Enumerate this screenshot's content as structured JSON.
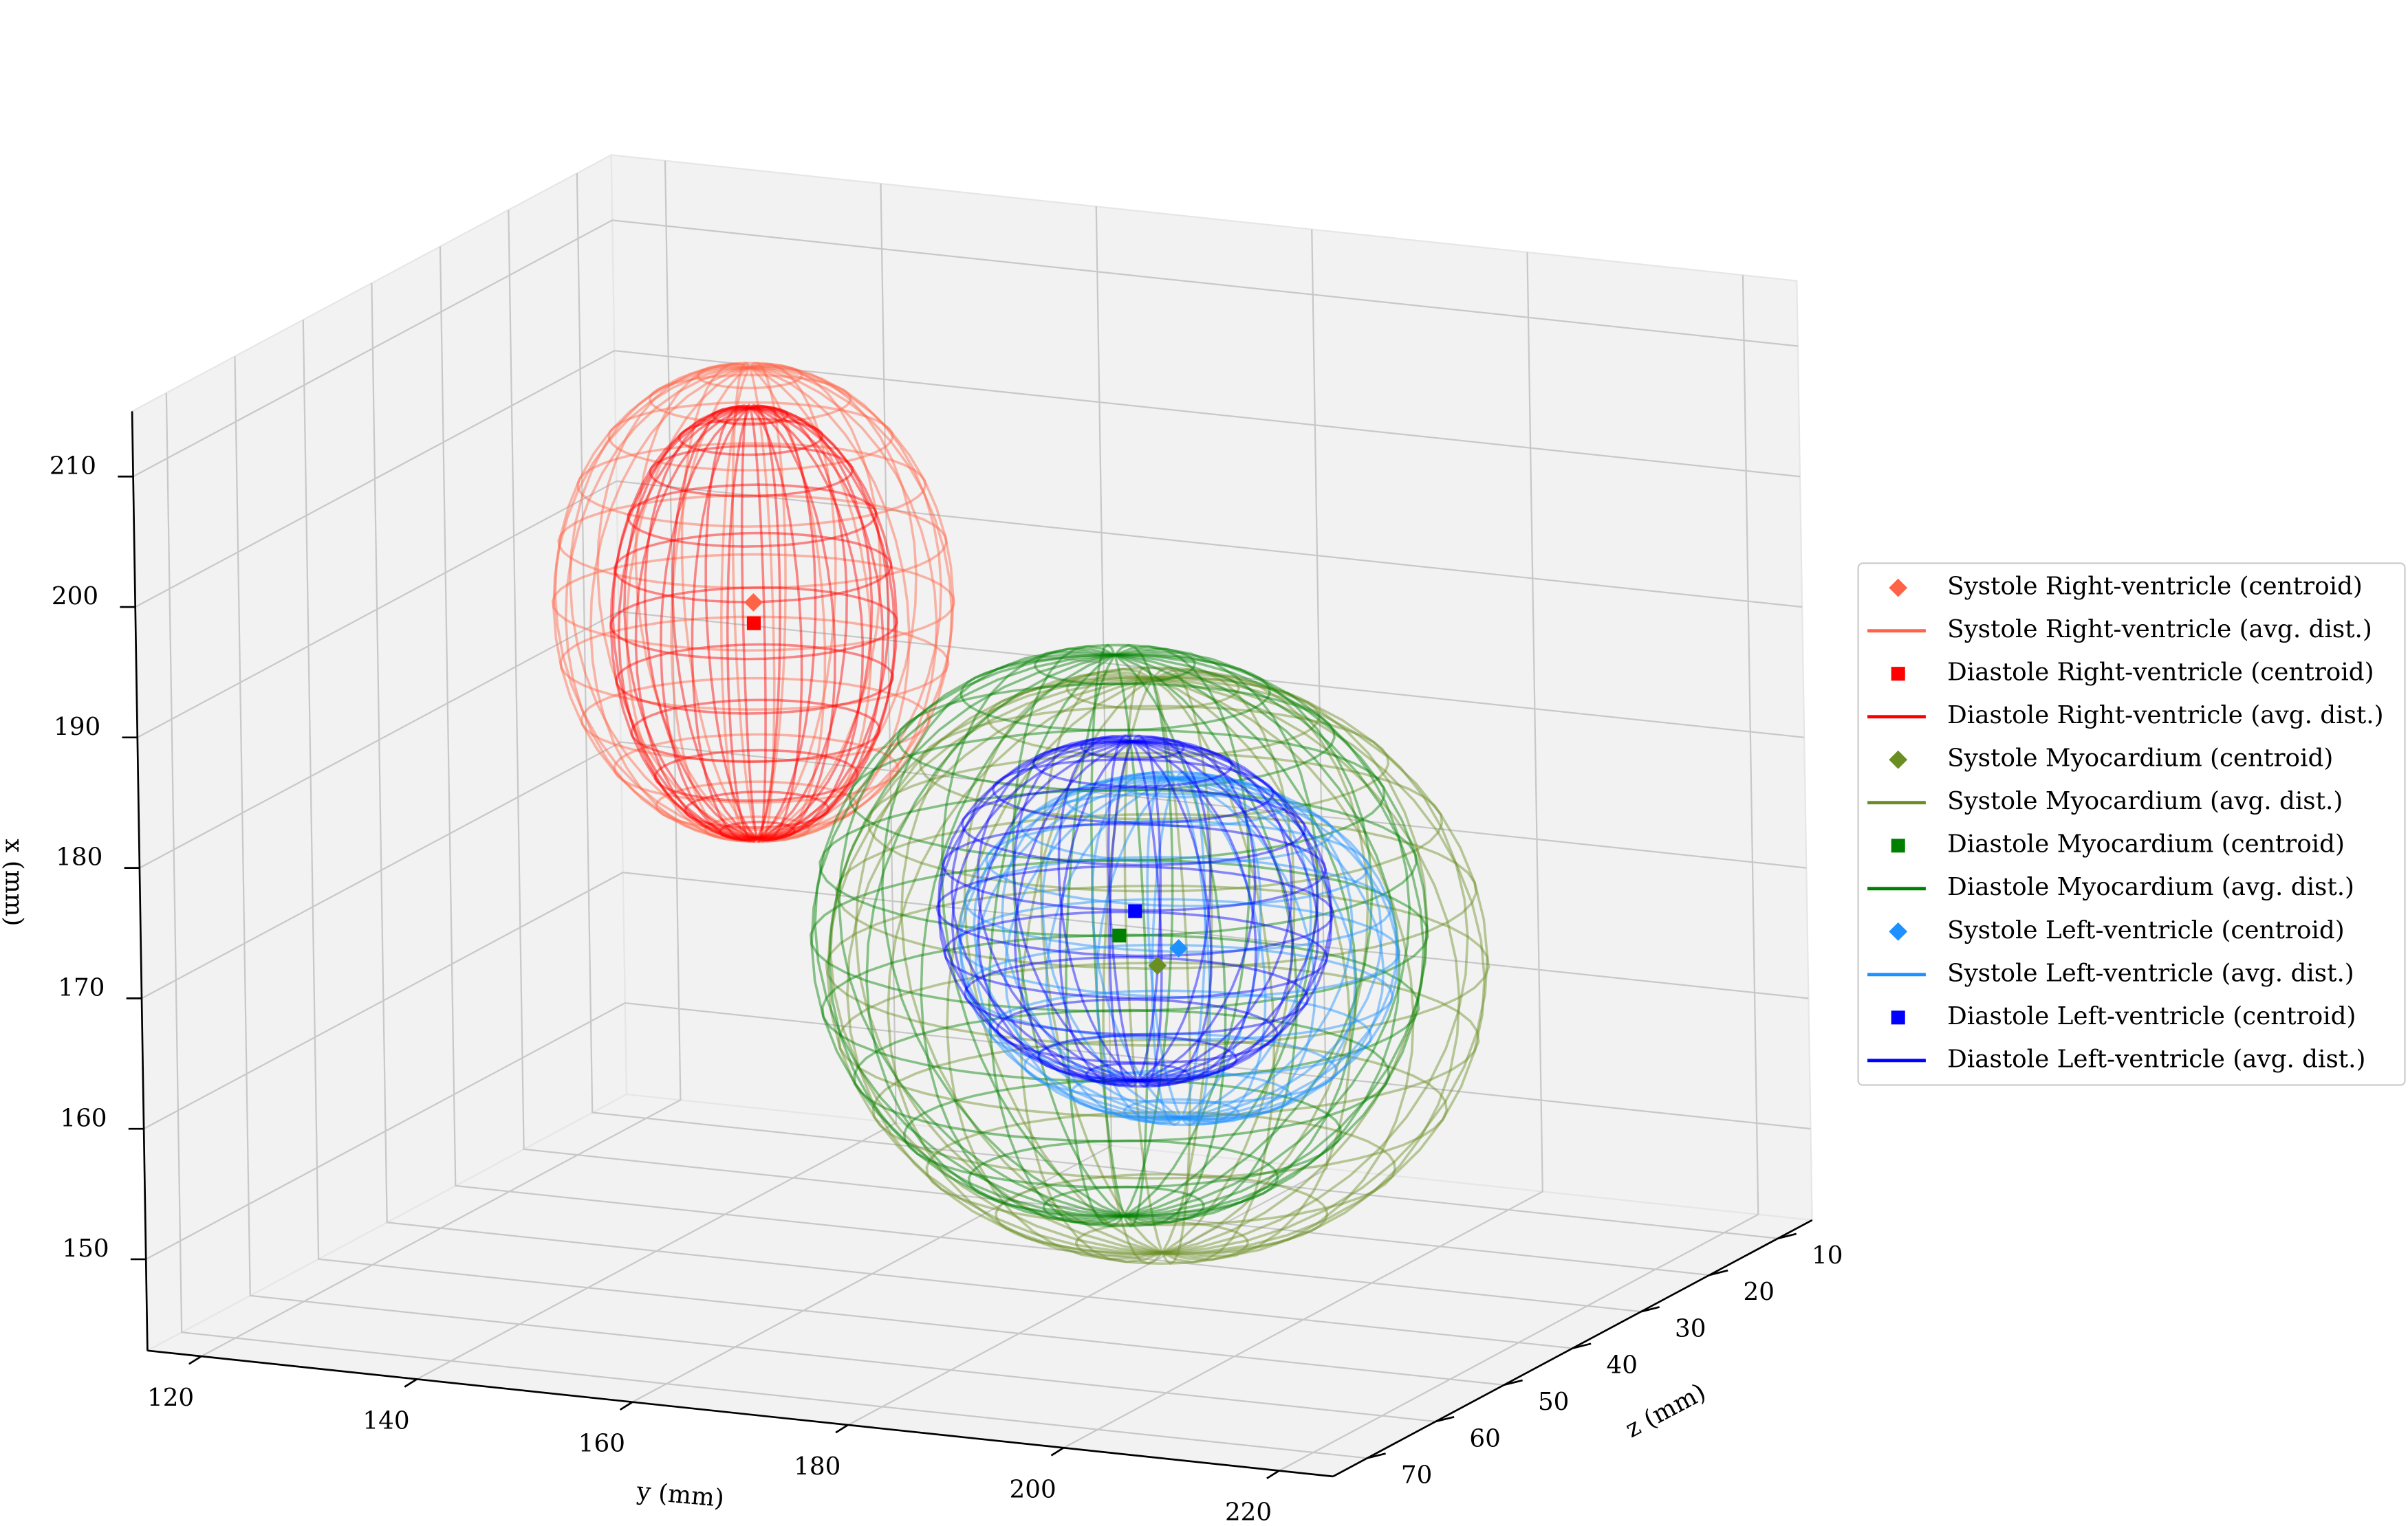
{
  "chart_data": {
    "type": "scatter3d",
    "xlabel": "x (mm)",
    "ylabel": "y (mm)",
    "zlabel": "z (mm)",
    "xlim": [
      143,
      215
    ],
    "ylim": [
      115,
      225
    ],
    "zlim": [
      5,
      75
    ],
    "xticks": [
      150,
      160,
      170,
      180,
      190,
      200,
      210
    ],
    "yticks": [
      120,
      140,
      160,
      180,
      200,
      220
    ],
    "zticks": [
      10,
      20,
      30,
      40,
      50,
      60,
      70
    ],
    "grid": true,
    "legend": "right",
    "series": [
      {
        "centroid_name": "Systole Right-ventricle (centroid)",
        "dist_name": "Systole Right-ventricle (avg. dist.)",
        "color": "#ff6347",
        "marker": "diamond",
        "centroid": {
          "x": 193.6,
          "y": 150,
          "z": 40
        },
        "radii": {
          "x": 18,
          "y": 17,
          "z": 12
        }
      },
      {
        "centroid_name": "Diastole Right-ventricle (centroid)",
        "dist_name": "Diastole Right-ventricle (avg. dist.)",
        "color": "#ff0000",
        "marker": "square",
        "centroid": {
          "x": 192,
          "y": 150,
          "z": 40
        },
        "radii": {
          "x": 16.5,
          "y": 12,
          "z": 9
        }
      },
      {
        "centroid_name": "Systole Myocardium (centroid)",
        "dist_name": "Systole Myocardium (avg. dist.)",
        "color": "#6b8e23",
        "marker": "diamond",
        "centroid": {
          "x": 169,
          "y": 187,
          "z": 40
        },
        "radii": {
          "x": 22,
          "y": 28,
          "z": 20
        }
      },
      {
        "centroid_name": "Diastole Myocardium (centroid)",
        "dist_name": "Diastole Myocardium (avg. dist.)",
        "color": "#008000",
        "marker": "square",
        "centroid": {
          "x": 171,
          "y": 183.5,
          "z": 40
        },
        "radii": {
          "x": 21.5,
          "y": 26,
          "z": 19
        }
      },
      {
        "centroid_name": "Systole Left-ventricle (centroid)",
        "dist_name": "Systole Left-ventricle (avg. dist.)",
        "color": "#1e90ff",
        "marker": "diamond",
        "centroid": {
          "x": 170.5,
          "y": 189,
          "z": 40
        },
        "radii": {
          "x": 13,
          "y": 19,
          "z": 12
        }
      },
      {
        "centroid_name": "Diastole Left-ventricle (centroid)",
        "dist_name": "Diastole Left-ventricle (avg. dist.)",
        "color": "#0000ff",
        "marker": "square",
        "centroid": {
          "x": 173,
          "y": 185,
          "z": 40
        },
        "radii": {
          "x": 13,
          "y": 17,
          "z": 11
        }
      }
    ]
  }
}
